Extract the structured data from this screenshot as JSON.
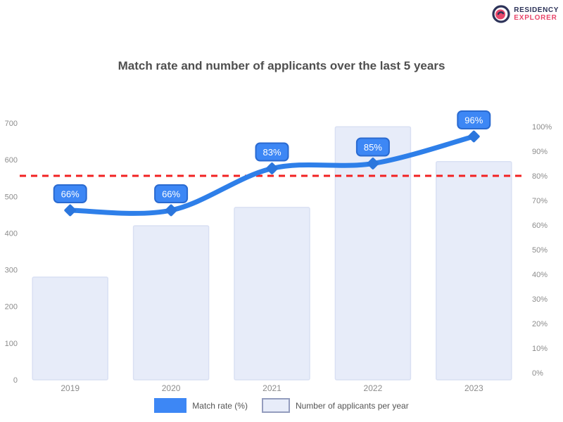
{
  "logo": {
    "line1": "RESIDENCY",
    "line2": "EXPLORER"
  },
  "title": "Match rate and number of applicants over the last 5 years",
  "legend": [
    {
      "label": "Match rate (%)",
      "swatch_color": "#3d87f5"
    },
    {
      "label": "Number of applicants per year",
      "swatch_color": "#e7ecf9"
    }
  ],
  "colors": {
    "line": "#2e7fe9",
    "marker": "#2b76dd",
    "badge_fill": "#3d87f5",
    "badge_border": "#2a6ad0",
    "badge_text": "#ffffff",
    "bar_fill": "#e7ecf9",
    "bar_border": "#d9e0f3",
    "benchmark": "#f22222",
    "axis_text": "#8c8c8c",
    "title_text": "#4f4f4f",
    "logo_navy": "#2d3359",
    "logo_pink": "#e8476b"
  },
  "chart_data": {
    "type": "bar",
    "categories": [
      "2019",
      "2020",
      "2021",
      "2022",
      "2023"
    ],
    "series": [
      {
        "name": "Number of applicants per year",
        "type": "bar",
        "axis": "left",
        "values": [
          280,
          420,
          470,
          690,
          595
        ]
      },
      {
        "name": "Match rate (%)",
        "type": "line",
        "axis": "right",
        "values": [
          66,
          66,
          83,
          85,
          96
        ],
        "point_labels": [
          "66%",
          "66%",
          "83%",
          "85%",
          "96%"
        ]
      }
    ],
    "left_axis": {
      "min": 0,
      "max": 700,
      "step": 100,
      "ticks": [
        "0",
        "100",
        "200",
        "300",
        "400",
        "500",
        "600",
        "700"
      ]
    },
    "right_axis": {
      "min": 0,
      "max": 100,
      "step": 10,
      "ticks": [
        "0%",
        "10%",
        "20%",
        "30%",
        "40%",
        "50%",
        "60%",
        "70%",
        "80%",
        "90%",
        "100%"
      ]
    },
    "benchmark": {
      "value": 80,
      "axis": "right",
      "style": "dashed",
      "color": "#f22222"
    },
    "grid": false,
    "legend_position": "bottom"
  }
}
